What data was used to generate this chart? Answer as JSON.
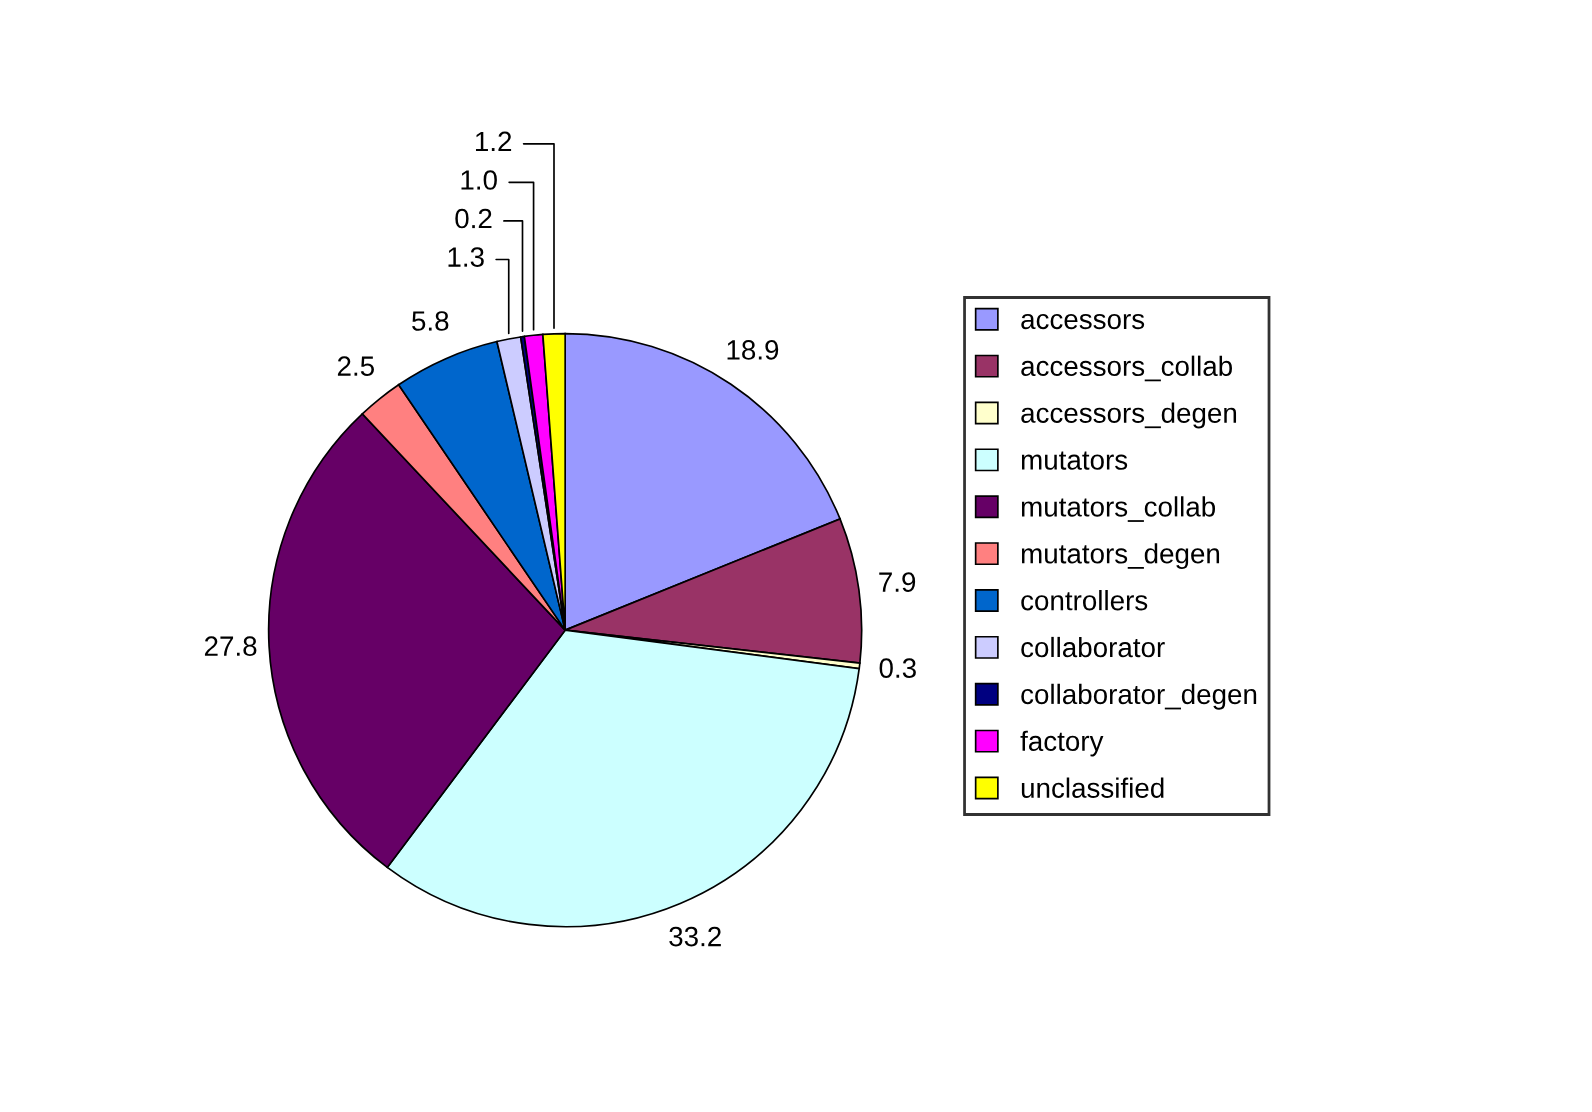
{
  "chart_data": {
    "type": "pie",
    "categories": [
      "accessors",
      "accessors_collab",
      "accessors_degen",
      "mutators",
      "mutators_collab",
      "mutators_degen",
      "controllers",
      "collaborator",
      "collaborator_degen",
      "factory",
      "unclassified"
    ],
    "values": [
      18.9,
      7.9,
      0.3,
      33.2,
      27.8,
      2.5,
      5.8,
      1.3,
      0.2,
      1.0,
      1.2
    ],
    "colors": [
      "#9999ff",
      "#993366",
      "#ffffcc",
      "#ccffff",
      "#660066",
      "#ff8080",
      "#0066cc",
      "#ccccff",
      "#000080",
      "#ff00ff",
      "#ffff00"
    ],
    "value_labels": [
      "18.9",
      "7.9",
      "0.3",
      "33.2",
      "27.8",
      "2.5",
      "5.8",
      "1.3",
      "0.2",
      "1.0",
      "1.2"
    ],
    "legend": "right"
  }
}
